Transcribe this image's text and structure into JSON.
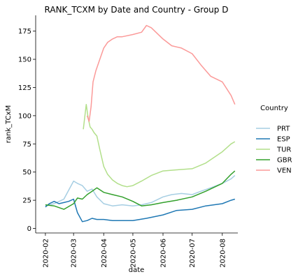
{
  "chart_data": {
    "type": "line",
    "title": "RANK_TCXM by Date and Country - Group D",
    "xlabel": "date",
    "ylabel": "rank_TCxM",
    "x_tick_labels": [
      "2020-02",
      "2020-03",
      "2020-04",
      "2020-05",
      "2020-06",
      "2020-07",
      "2020-08"
    ],
    "x_tick_dates": [
      "2020-02-01",
      "2020-03-01",
      "2020-04-01",
      "2020-05-01",
      "2020-06-01",
      "2020-07-01",
      "2020-08-01"
    ],
    "xlim": [
      "2020-01-22",
      "2020-08-17"
    ],
    "y_ticks": [
      0,
      25,
      50,
      75,
      100,
      125,
      150,
      175
    ],
    "ylim": [
      -4,
      189
    ],
    "grid": false,
    "legend_title": "Country",
    "legend_position": "right",
    "series": [
      {
        "name": "PRT",
        "color": "#a6cee3",
        "x": [
          "2020-02-01",
          "2020-02-10",
          "2020-02-20",
          "2020-03-01",
          "2020-03-05",
          "2020-03-10",
          "2020-03-15",
          "2020-03-20",
          "2020-03-25",
          "2020-04-01",
          "2020-04-10",
          "2020-04-20",
          "2020-05-01",
          "2020-05-10",
          "2020-05-20",
          "2020-06-01",
          "2020-06-10",
          "2020-06-20",
          "2020-07-01",
          "2020-07-10",
          "2020-07-20",
          "2020-08-01",
          "2020-08-10",
          "2020-08-14"
        ],
        "values": [
          20,
          22,
          26,
          42,
          40,
          38,
          33,
          35,
          28,
          22,
          20,
          21,
          20,
          21,
          23,
          28,
          30,
          31,
          30,
          33,
          36,
          40,
          44,
          47
        ]
      },
      {
        "name": "ESP",
        "color": "#1f78b4",
        "x": [
          "2020-02-01",
          "2020-02-05",
          "2020-02-10",
          "2020-02-15",
          "2020-02-20",
          "2020-02-25",
          "2020-03-01",
          "2020-03-05",
          "2020-03-10",
          "2020-03-15",
          "2020-03-20",
          "2020-03-25",
          "2020-04-01",
          "2020-04-10",
          "2020-04-20",
          "2020-05-01",
          "2020-05-15",
          "2020-06-01",
          "2020-06-15",
          "2020-07-01",
          "2020-07-15",
          "2020-08-01",
          "2020-08-10",
          "2020-08-14"
        ],
        "values": [
          19,
          22,
          24,
          22,
          23,
          24,
          26,
          14,
          6,
          7,
          9,
          8,
          8,
          7,
          7,
          7,
          9,
          12,
          16,
          17,
          20,
          22,
          25,
          26
        ]
      },
      {
        "name": "TUR",
        "color": "#b2df8a",
        "x": [
          "2020-03-11",
          "2020-03-14",
          "2020-03-16",
          "2020-03-18",
          "2020-03-20",
          "2020-03-22",
          "2020-03-25",
          "2020-03-28",
          "2020-04-01",
          "2020-04-05",
          "2020-04-10",
          "2020-04-15",
          "2020-04-20",
          "2020-04-25",
          "2020-05-01",
          "2020-05-10",
          "2020-05-20",
          "2020-06-01",
          "2020-06-15",
          "2020-07-01",
          "2020-07-15",
          "2020-08-01",
          "2020-08-10",
          "2020-08-14"
        ],
        "values": [
          88,
          110,
          98,
          90,
          88,
          85,
          82,
          70,
          55,
          48,
          43,
          40,
          38,
          37,
          38,
          42,
          47,
          51,
          52,
          53,
          58,
          68,
          75,
          77
        ]
      },
      {
        "name": "GBR",
        "color": "#33a02c",
        "x": [
          "2020-02-01",
          "2020-02-10",
          "2020-02-20",
          "2020-03-01",
          "2020-03-05",
          "2020-03-10",
          "2020-03-15",
          "2020-03-20",
          "2020-03-25",
          "2020-04-01",
          "2020-04-10",
          "2020-04-20",
          "2020-05-01",
          "2020-05-10",
          "2020-05-20",
          "2020-06-01",
          "2020-06-15",
          "2020-07-01",
          "2020-07-15",
          "2020-08-01",
          "2020-08-10",
          "2020-08-14"
        ],
        "values": [
          21,
          20,
          17,
          22,
          27,
          26,
          30,
          33,
          36,
          32,
          30,
          28,
          24,
          20,
          21,
          23,
          25,
          28,
          33,
          40,
          48,
          51
        ]
      },
      {
        "name": "VEN",
        "color": "#fb9a99",
        "x": [
          "2020-03-15",
          "2020-03-17",
          "2020-03-19",
          "2020-03-21",
          "2020-03-24",
          "2020-03-28",
          "2020-04-01",
          "2020-04-05",
          "2020-04-10",
          "2020-04-15",
          "2020-04-20",
          "2020-05-01",
          "2020-05-10",
          "2020-05-15",
          "2020-05-20",
          "2020-06-01",
          "2020-06-10",
          "2020-06-20",
          "2020-07-01",
          "2020-07-10",
          "2020-07-20",
          "2020-08-01",
          "2020-08-10",
          "2020-08-14"
        ],
        "values": [
          100,
          95,
          108,
          130,
          140,
          150,
          160,
          165,
          168,
          170,
          170,
          172,
          174,
          180,
          178,
          168,
          162,
          160,
          155,
          145,
          135,
          130,
          118,
          110
        ]
      }
    ]
  }
}
